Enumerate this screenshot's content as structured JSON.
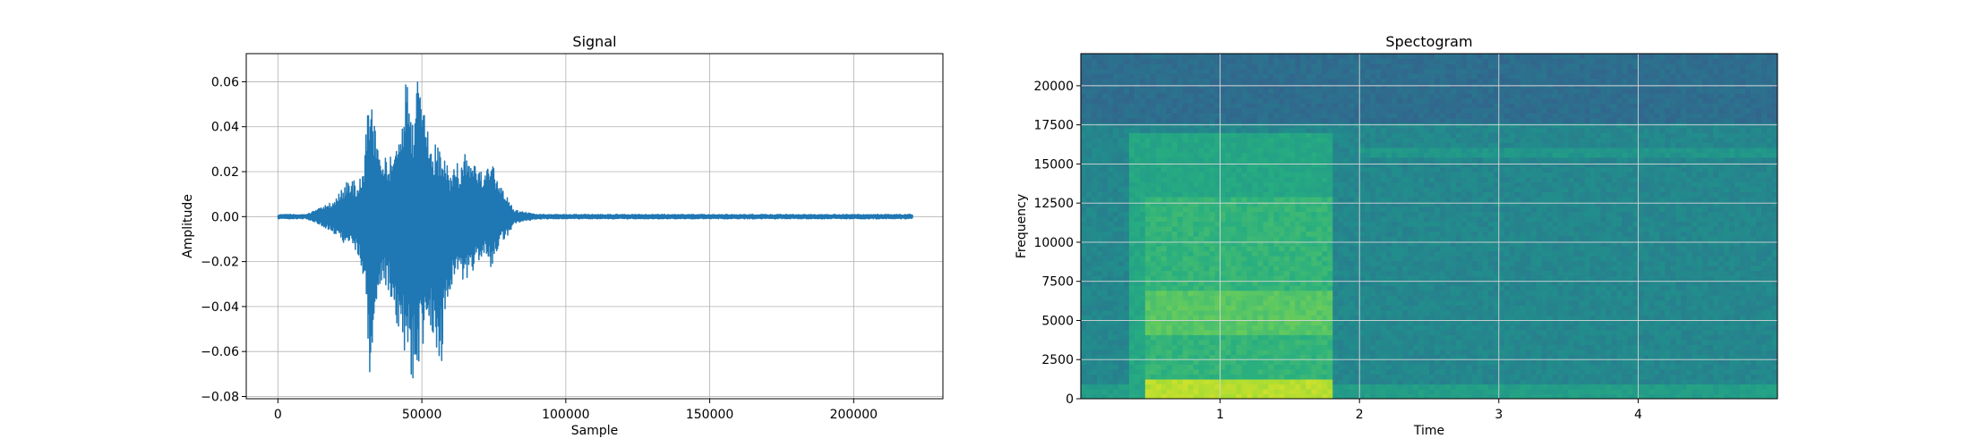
{
  "chart_data": [
    {
      "type": "line",
      "title": "Signal",
      "xlabel": "Sample",
      "ylabel": "Amplitude",
      "xlim": [
        -11000,
        231000
      ],
      "ylim": [
        -0.081,
        0.0725
      ],
      "xticks": [
        0,
        50000,
        100000,
        150000,
        200000
      ],
      "xtick_labels": [
        "0",
        "50000",
        "100000",
        "150000",
        "200000"
      ],
      "yticks": [
        -0.08,
        -0.06,
        -0.04,
        -0.02,
        0.0,
        0.02,
        0.04,
        0.06
      ],
      "ytick_labels": [
        "−0.08",
        "−0.06",
        "−0.04",
        "−0.02",
        "0.00",
        "0.02",
        "0.04",
        "0.06"
      ],
      "grid": true,
      "line_color": "#1f77b4",
      "series": [
        {
          "x": [
            0,
            10000,
            15000,
            18000,
            20000,
            22000,
            25000,
            28000,
            30000,
            32000,
            33000,
            35000,
            38000,
            40000,
            42000,
            44000,
            45000,
            47000,
            48000,
            49000,
            50000,
            52000,
            54000,
            55000,
            57000,
            58000,
            60000,
            62000,
            63000,
            65000,
            67000,
            68000,
            70000,
            72000,
            74000,
            75000,
            77000,
            80000,
            82000,
            90000,
            100000,
            150000,
            200000,
            220500
          ],
          "ymax": [
            0.001,
            0.001,
            0.004,
            0.006,
            0.008,
            0.012,
            0.018,
            0.014,
            0.025,
            0.066,
            0.048,
            0.03,
            0.025,
            0.028,
            0.04,
            0.06,
            0.064,
            0.04,
            0.066,
            0.06,
            0.065,
            0.045,
            0.03,
            0.035,
            0.025,
            0.028,
            0.018,
            0.025,
            0.022,
            0.028,
            0.024,
            0.023,
            0.024,
            0.02,
            0.023,
            0.022,
            0.014,
            0.008,
            0.003,
            0.001,
            0.001,
            0.001,
            0.001,
            0.001
          ],
          "ymin": [
            -0.001,
            -0.001,
            -0.004,
            -0.006,
            -0.008,
            -0.012,
            -0.012,
            -0.018,
            -0.03,
            -0.075,
            -0.06,
            -0.035,
            -0.03,
            -0.046,
            -0.052,
            -0.063,
            -0.065,
            -0.075,
            -0.07,
            -0.068,
            -0.064,
            -0.048,
            -0.055,
            -0.06,
            -0.065,
            -0.045,
            -0.035,
            -0.025,
            -0.03,
            -0.035,
            -0.022,
            -0.025,
            -0.02,
            -0.018,
            -0.025,
            -0.02,
            -0.012,
            -0.008,
            -0.003,
            -0.001,
            -0.001,
            -0.001,
            -0.001,
            -0.001
          ]
        }
      ]
    },
    {
      "type": "heatmap",
      "title": "Spectogram",
      "xlabel": "Time",
      "ylabel": "Frequency",
      "xlim": [
        0,
        5.0
      ],
      "ylim": [
        0,
        22050
      ],
      "xticks": [
        1,
        2,
        3,
        4
      ],
      "xtick_labels": [
        "1",
        "2",
        "3",
        "4"
      ],
      "yticks": [
        0,
        2500,
        5000,
        7500,
        10000,
        12500,
        15000,
        17500,
        20000
      ],
      "ytick_labels": [
        "0",
        "2500",
        "5000",
        "7500",
        "10000",
        "12500",
        "15000",
        "17500",
        "20000"
      ],
      "grid": true,
      "colormap": "viridis",
      "regions": [
        {
          "t_start": 0.0,
          "t_end": 5.0,
          "f_low": 17500,
          "f_high": 22050,
          "level": 0.36
        },
        {
          "t_start": 0.0,
          "t_end": 5.0,
          "f_low": 0,
          "f_high": 17500,
          "level": 0.46
        },
        {
          "t_start": 0.0,
          "t_end": 5.0,
          "f_low": 0,
          "f_high": 1000,
          "level": 0.56
        },
        {
          "t_start": 0.35,
          "t_end": 1.8,
          "f_low": 0,
          "f_high": 17000,
          "level": 0.6
        },
        {
          "t_start": 0.45,
          "t_end": 1.8,
          "f_low": 0,
          "f_high": 13000,
          "level": 0.66
        },
        {
          "t_start": 0.45,
          "t_end": 1.8,
          "f_low": 4000,
          "f_high": 7000,
          "level": 0.74
        },
        {
          "t_start": 0.45,
          "t_end": 1.8,
          "f_low": 0,
          "f_high": 1200,
          "level": 0.9
        },
        {
          "t_start": 2.0,
          "t_end": 5.0,
          "f_low": 15500,
          "f_high": 16200,
          "level": 0.52
        }
      ]
    }
  ]
}
